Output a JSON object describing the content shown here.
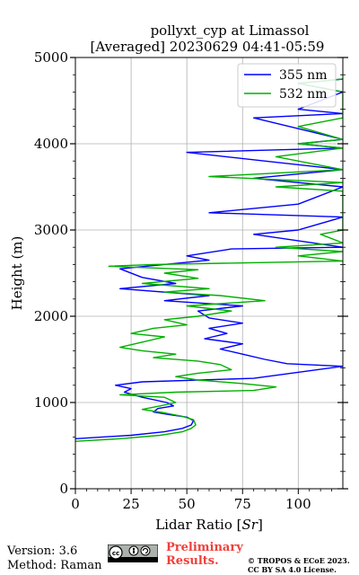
{
  "chart_data": {
    "type": "line",
    "title": "pollyxt_cyp at Limassol",
    "subtitle": "[Averaged] 20230629 04:41-05:59",
    "xlabel": "Lidar Ratio [",
    "xlabel_unit": "Sr",
    "xlabel_close": "]",
    "ylabel": "Height (m)",
    "xlim": [
      0,
      120
    ],
    "ylim": [
      0,
      5000
    ],
    "xticks": [
      "0",
      "25",
      "50",
      "75",
      "100"
    ],
    "xtick_values": [
      0,
      25,
      50,
      75,
      100
    ],
    "yticks": [
      "0",
      "1000",
      "2000",
      "3000",
      "4000",
      "5000"
    ],
    "ytick_values": [
      0,
      1000,
      2000,
      3000,
      4000,
      5000
    ],
    "grid": true,
    "legend_position": "top-right",
    "series": [
      {
        "name": "355 nm",
        "color": "#0000ff",
        "points": [
          [
            0,
            580
          ],
          [
            25,
            620
          ],
          [
            40,
            660
          ],
          [
            48,
            700
          ],
          [
            52,
            740
          ],
          [
            53,
            790
          ],
          [
            50,
            830
          ],
          [
            42,
            860
          ],
          [
            35,
            890
          ],
          [
            37,
            930
          ],
          [
            44,
            960
          ],
          [
            41,
            1000
          ],
          [
            30,
            1060
          ],
          [
            22,
            1120
          ],
          [
            25,
            1160
          ],
          [
            18,
            1200
          ],
          [
            30,
            1240
          ],
          [
            80,
            1280
          ],
          [
            120,
            1420
          ],
          [
            95,
            1450
          ],
          [
            85,
            1500
          ],
          [
            75,
            1560
          ],
          [
            65,
            1620
          ],
          [
            75,
            1680
          ],
          [
            58,
            1740
          ],
          [
            68,
            1800
          ],
          [
            60,
            1860
          ],
          [
            75,
            1920
          ],
          [
            60,
            1980
          ],
          [
            55,
            2060
          ],
          [
            75,
            2120
          ],
          [
            40,
            2180
          ],
          [
            60,
            2240
          ],
          [
            20,
            2320
          ],
          [
            45,
            2380
          ],
          [
            30,
            2450
          ],
          [
            20,
            2550
          ],
          [
            60,
            2650
          ],
          [
            50,
            2700
          ],
          [
            70,
            2780
          ],
          [
            120,
            2800
          ],
          [
            80,
            2950
          ],
          [
            100,
            3000
          ],
          [
            120,
            3150
          ],
          [
            60,
            3200
          ],
          [
            100,
            3300
          ],
          [
            120,
            3500
          ],
          [
            80,
            3600
          ],
          [
            120,
            3700
          ],
          [
            50,
            3900
          ],
          [
            120,
            3950
          ],
          [
            100,
            4000
          ],
          [
            120,
            4050
          ],
          [
            80,
            4300
          ],
          [
            120,
            4350
          ],
          [
            100,
            4400
          ],
          [
            120,
            4600
          ],
          [
            100,
            4700
          ],
          [
            120,
            4750
          ]
        ]
      },
      {
        "name": "532 nm",
        "color": "#00b000",
        "points": [
          [
            0,
            550
          ],
          [
            20,
            580
          ],
          [
            38,
            620
          ],
          [
            48,
            660
          ],
          [
            52,
            700
          ],
          [
            54,
            740
          ],
          [
            53,
            800
          ],
          [
            48,
            840
          ],
          [
            40,
            880
          ],
          [
            30,
            920
          ],
          [
            38,
            960
          ],
          [
            45,
            1000
          ],
          [
            40,
            1060
          ],
          [
            20,
            1090
          ],
          [
            45,
            1120
          ],
          [
            80,
            1140
          ],
          [
            90,
            1180
          ],
          [
            75,
            1220
          ],
          [
            55,
            1260
          ],
          [
            45,
            1300
          ],
          [
            55,
            1340
          ],
          [
            70,
            1380
          ],
          [
            65,
            1440
          ],
          [
            55,
            1480
          ],
          [
            35,
            1520
          ],
          [
            45,
            1560
          ],
          [
            30,
            1600
          ],
          [
            20,
            1640
          ],
          [
            30,
            1700
          ],
          [
            40,
            1760
          ],
          [
            25,
            1800
          ],
          [
            35,
            1860
          ],
          [
            50,
            1900
          ],
          [
            40,
            1960
          ],
          [
            55,
            2000
          ],
          [
            70,
            2060
          ],
          [
            50,
            2120
          ],
          [
            85,
            2180
          ],
          [
            65,
            2240
          ],
          [
            40,
            2280
          ],
          [
            60,
            2320
          ],
          [
            30,
            2380
          ],
          [
            55,
            2440
          ],
          [
            40,
            2500
          ],
          [
            55,
            2540
          ],
          [
            15,
            2580
          ],
          [
            35,
            2600
          ],
          [
            120,
            2640
          ],
          [
            100,
            2700
          ],
          [
            120,
            2750
          ],
          [
            90,
            2800
          ],
          [
            120,
            2850
          ],
          [
            110,
            2950
          ],
          [
            120,
            3000
          ],
          [
            120,
            3450
          ],
          [
            90,
            3500
          ],
          [
            120,
            3550
          ],
          [
            60,
            3620
          ],
          [
            120,
            3700
          ],
          [
            90,
            3850
          ],
          [
            120,
            3950
          ],
          [
            100,
            4000
          ],
          [
            120,
            4050
          ],
          [
            100,
            4200
          ],
          [
            120,
            4300
          ],
          [
            120,
            4600
          ],
          [
            100,
            4700
          ],
          [
            120,
            4750
          ]
        ]
      }
    ]
  },
  "footer": {
    "version": "Version: 3.6",
    "method": "Method: Raman",
    "cc_badge": "cc-by-sa-icon",
    "preliminary_line1": "Preliminary",
    "preliminary_line2": "Results.",
    "copyright_line1": "© TROPOS & ECoE 2023.",
    "copyright_line2": "CC BY SA 4.0 License.",
    "preliminary_color": "#f0403a"
  }
}
